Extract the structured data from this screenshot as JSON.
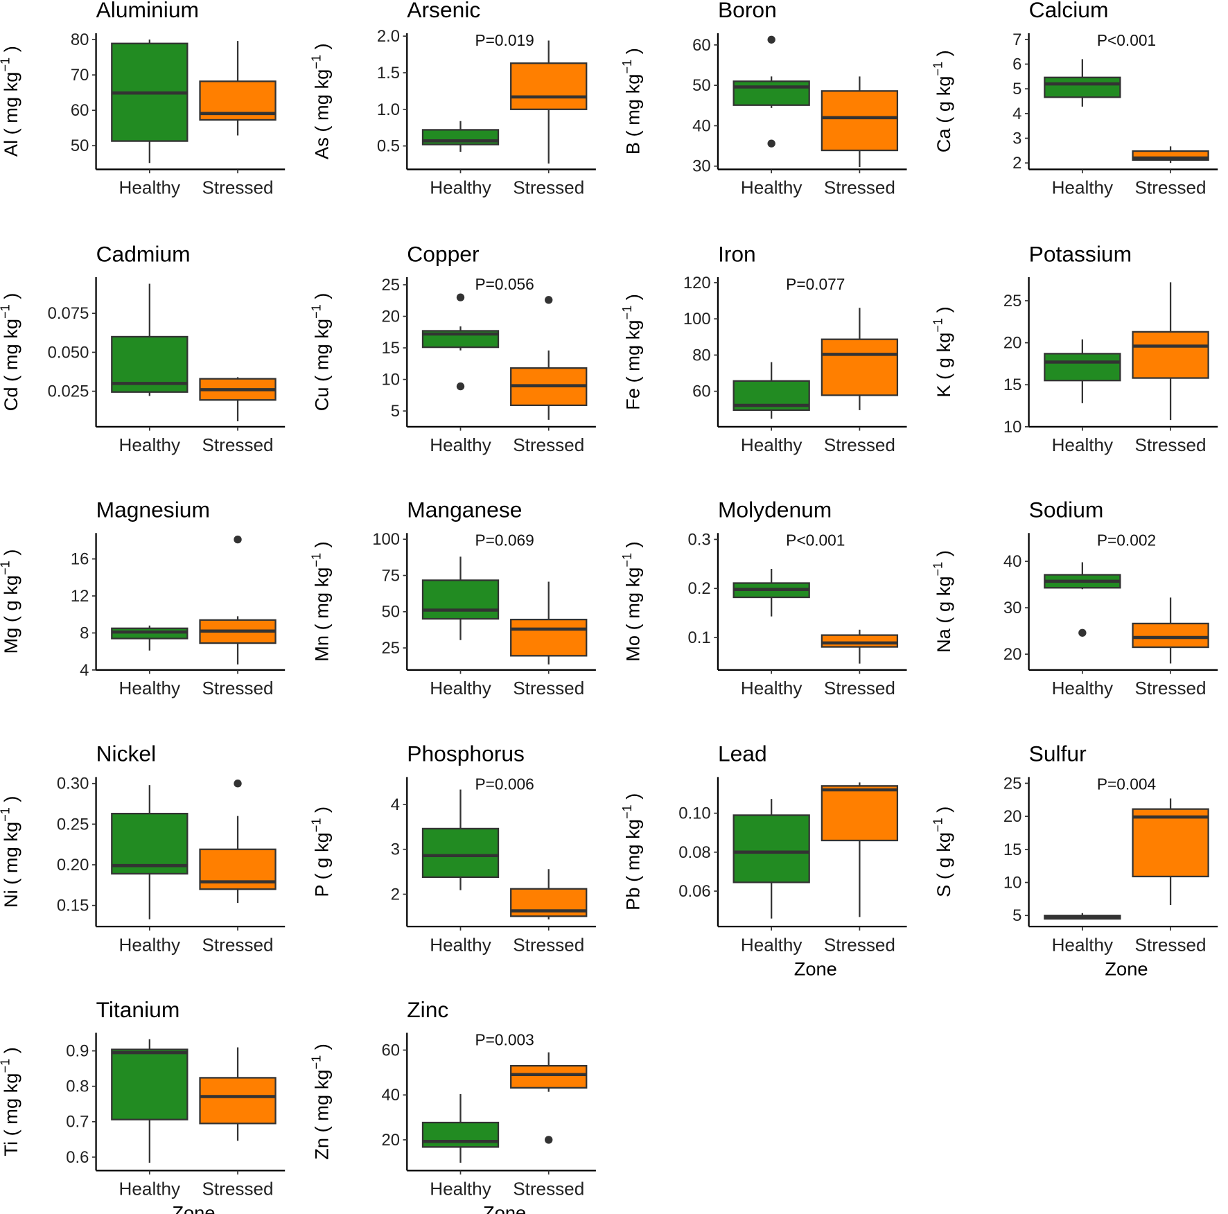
{
  "colors": {
    "Healthy": "#228B22",
    "Stressed": "#FF7F00",
    "median": "#333333",
    "axis": "#000000"
  },
  "chart_data": [
    {
      "type": "box",
      "title": "Aluminium",
      "ylabel": {
        "text": "Al ( mg kg",
        "exp": "−1",
        "end": " )"
      },
      "ylim": [
        43.3,
        81.8
      ],
      "yticks": [
        50,
        60,
        70,
        80
      ],
      "tick_labels": [
        "50",
        "60",
        "70",
        "80"
      ],
      "categories": [
        "Healthy",
        "Stressed"
      ],
      "pvalue": null,
      "xlabel": null,
      "boxes": [
        {
          "min": 45.1,
          "q1": 51.3,
          "median": 64.9,
          "q3": 78.9,
          "max": 80,
          "outliers": []
        },
        {
          "min": 52.9,
          "q1": 57.3,
          "median": 59.1,
          "q3": 68.2,
          "max": 79.6,
          "outliers": []
        }
      ]
    },
    {
      "type": "box",
      "title": "Arsenic",
      "ylabel": {
        "text": "As ( mg kg",
        "exp": "−1",
        "end": " )"
      },
      "ylim": [
        0.18,
        2.04
      ],
      "yticks": [
        0.5,
        1.0,
        1.5,
        2.0
      ],
      "tick_labels": [
        "0.5",
        "1.0",
        "1.5",
        "2.0"
      ],
      "categories": [
        "Healthy",
        "Stressed"
      ],
      "pvalue": "P=0.019",
      "xlabel": null,
      "boxes": [
        {
          "min": 0.42,
          "q1": 0.52,
          "median": 0.57,
          "q3": 0.72,
          "max": 0.84,
          "outliers": []
        },
        {
          "min": 0.26,
          "q1": 1.0,
          "median": 1.17,
          "q3": 1.63,
          "max": 1.94,
          "outliers": []
        }
      ]
    },
    {
      "type": "box",
      "title": "Boron",
      "ylabel": {
        "text": "B ( mg kg",
        "exp": "−1",
        "end": " )"
      },
      "ylim": [
        29.2,
        62.9
      ],
      "yticks": [
        30,
        40,
        50,
        60
      ],
      "tick_labels": [
        "30",
        "40",
        "50",
        "60"
      ],
      "categories": [
        "Healthy",
        "Stressed"
      ],
      "pvalue": null,
      "xlabel": null,
      "boxes": [
        {
          "min": 44.4,
          "q1": 45.1,
          "median": 49.6,
          "q3": 51.0,
          "max": 52.2,
          "outliers": [
            61.3,
            35.6
          ]
        },
        {
          "min": 29.8,
          "q1": 33.9,
          "median": 42.0,
          "q3": 48.6,
          "max": 52.2,
          "outliers": []
        }
      ]
    },
    {
      "type": "box",
      "title": "Calcium",
      "ylabel": {
        "text": "Ca ( g kg",
        "exp": "−1",
        "end": " )"
      },
      "ylim": [
        1.74,
        7.25
      ],
      "yticks": [
        2,
        3,
        4,
        5,
        6,
        7
      ],
      "tick_labels": [
        "2",
        "3",
        "4",
        "5",
        "6",
        "7"
      ],
      "categories": [
        "Healthy",
        "Stressed"
      ],
      "pvalue": "P<0.001",
      "xlabel": null,
      "boxes": [
        {
          "min": 4.28,
          "q1": 4.66,
          "median": 5.2,
          "q3": 5.46,
          "max": 6.2,
          "outliers": []
        },
        {
          "min": 2.0,
          "q1": 2.12,
          "median": 2.2,
          "q3": 2.48,
          "max": 2.67,
          "outliers": []
        }
      ]
    },
    {
      "type": "box",
      "title": "Cadmium",
      "ylabel": {
        "text": "Cd ( mg kg",
        "exp": "−1",
        "end": " )"
      },
      "ylim": [
        0.0022,
        0.0982
      ],
      "yticks": [
        0.025,
        0.05,
        0.075
      ],
      "tick_labels": [
        "0.025",
        "0.050",
        "0.075"
      ],
      "categories": [
        "Healthy",
        "Stressed"
      ],
      "pvalue": null,
      "xlabel": null,
      "boxes": [
        {
          "min": 0.022,
          "q1": 0.0245,
          "median": 0.03,
          "q3": 0.06,
          "max": 0.094,
          "outliers": []
        },
        {
          "min": 0.0057,
          "q1": 0.0194,
          "median": 0.026,
          "q3": 0.033,
          "max": 0.034,
          "outliers": []
        }
      ]
    },
    {
      "type": "box",
      "title": "Copper",
      "ylabel": {
        "text": "Cu ( mg kg",
        "exp": "−1",
        "end": " )"
      },
      "ylim": [
        2.5,
        26.2
      ],
      "yticks": [
        5,
        10,
        15,
        20,
        25
      ],
      "tick_labels": [
        "5",
        "10",
        "15",
        "20",
        "25"
      ],
      "categories": [
        "Healthy",
        "Stressed"
      ],
      "pvalue": "P=0.056",
      "xlabel": null,
      "boxes": [
        {
          "min": 14.6,
          "q1": 15.1,
          "median": 17.2,
          "q3": 17.7,
          "max": 18.4,
          "outliers": [
            23.0,
            8.9
          ]
        },
        {
          "min": 3.6,
          "q1": 5.9,
          "median": 9.0,
          "q3": 11.8,
          "max": 14.6,
          "outliers": [
            22.6
          ]
        }
      ]
    },
    {
      "type": "box",
      "title": "Iron",
      "ylabel": {
        "text": "Fe ( mg kg",
        "exp": "−1",
        "end": " )"
      },
      "ylim": [
        40.4,
        123
      ],
      "yticks": [
        60,
        80,
        100,
        120
      ],
      "tick_labels": [
        "60",
        "80",
        "100",
        "120"
      ],
      "categories": [
        "Healthy",
        "Stressed"
      ],
      "pvalue": "P=0.077",
      "xlabel": null,
      "boxes": [
        {
          "min": 44.8,
          "q1": 49.6,
          "median": 52.2,
          "q3": 65.7,
          "max": 76.1,
          "outliers": []
        },
        {
          "min": 49.6,
          "q1": 57.8,
          "median": 80.4,
          "q3": 88.7,
          "max": 106.1,
          "outliers": []
        }
      ]
    },
    {
      "type": "box",
      "title": "Potassium",
      "ylabel": {
        "text": "K ( g kg",
        "exp": "−1",
        "end": " )"
      },
      "ylim": [
        10.0,
        27.8
      ],
      "yticks": [
        10,
        15,
        20,
        25
      ],
      "tick_labels": [
        "10",
        "15",
        "20",
        "25"
      ],
      "categories": [
        "Healthy",
        "Stressed"
      ],
      "pvalue": null,
      "xlabel": null,
      "boxes": [
        {
          "min": 12.8,
          "q1": 15.5,
          "median": 17.7,
          "q3": 18.7,
          "max": 20.4,
          "outliers": []
        },
        {
          "min": 10.8,
          "q1": 15.8,
          "median": 19.6,
          "q3": 21.3,
          "max": 27.2,
          "outliers": []
        }
      ]
    },
    {
      "type": "box",
      "title": "Magnesium",
      "ylabel": {
        "text": "Mg ( g kg",
        "exp": "−1",
        "end": " )"
      },
      "ylim": [
        4,
        18.8
      ],
      "yticks": [
        4,
        8,
        12,
        16
      ],
      "tick_labels": [
        "4",
        "8",
        "12",
        "16"
      ],
      "categories": [
        "Healthy",
        "Stressed"
      ],
      "pvalue": null,
      "xlabel": null,
      "boxes": [
        {
          "min": 6.1,
          "q1": 7.4,
          "median": 8.1,
          "q3": 8.5,
          "max": 8.8,
          "outliers": []
        },
        {
          "min": 4.6,
          "q1": 6.9,
          "median": 8.2,
          "q3": 9.4,
          "max": 9.8,
          "outliers": [
            18.1
          ]
        }
      ]
    },
    {
      "type": "box",
      "title": "Manganese",
      "ylabel": {
        "text": "Mn ( mg kg",
        "exp": "−1",
        "end": " )"
      },
      "ylim": [
        9.8,
        104.3
      ],
      "yticks": [
        25,
        50,
        75,
        100
      ],
      "tick_labels": [
        "25",
        "50",
        "75",
        "100"
      ],
      "categories": [
        "Healthy",
        "Stressed"
      ],
      "pvalue": "P=0.069",
      "xlabel": null,
      "boxes": [
        {
          "min": 30.4,
          "q1": 45.1,
          "median": 51.1,
          "q3": 71.7,
          "max": 88.0,
          "outliers": []
        },
        {
          "min": 13.6,
          "q1": 19.6,
          "median": 38.0,
          "q3": 44.6,
          "max": 70.7,
          "outliers": []
        }
      ]
    },
    {
      "type": "box",
      "title": "Molydenum",
      "ylabel": {
        "text": "Mo ( mg kg",
        "exp": "−1",
        "end": " )"
      },
      "ylim": [
        0.034,
        0.313
      ],
      "yticks": [
        0.1,
        0.2,
        0.3
      ],
      "tick_labels": [
        "0.1",
        "0.2",
        "0.3"
      ],
      "categories": [
        "Healthy",
        "Stressed"
      ],
      "pvalue": "P<0.001",
      "xlabel": null,
      "boxes": [
        {
          "min": 0.143,
          "q1": 0.182,
          "median": 0.198,
          "q3": 0.211,
          "max": 0.24,
          "outliers": []
        },
        {
          "min": 0.047,
          "q1": 0.081,
          "median": 0.089,
          "q3": 0.105,
          "max": 0.116,
          "outliers": []
        }
      ]
    },
    {
      "type": "box",
      "title": "Sodium",
      "ylabel": {
        "text": "Na ( g kg",
        "exp": "−1",
        "end": " )"
      },
      "ylim": [
        16.6,
        46.1
      ],
      "yticks": [
        20,
        30,
        40
      ],
      "tick_labels": [
        "20",
        "30",
        "40"
      ],
      "categories": [
        "Healthy",
        "Stressed"
      ],
      "pvalue": "P=0.002",
      "xlabel": null,
      "boxes": [
        {
          "min": 34.0,
          "q1": 34.3,
          "median": 35.7,
          "q3": 37.1,
          "max": 39.8,
          "outliers": [
            24.6
          ]
        },
        {
          "min": 18.0,
          "q1": 21.5,
          "median": 23.6,
          "q3": 26.6,
          "max": 32.2,
          "outliers": []
        }
      ]
    },
    {
      "type": "box",
      "title": "Nickel",
      "ylabel": {
        "text": "Ni ( mg kg",
        "exp": "−1",
        "end": " )"
      },
      "ylim": [
        0.124,
        0.308
      ],
      "yticks": [
        0.15,
        0.2,
        0.25,
        0.3
      ],
      "tick_labels": [
        "0.15",
        "0.20",
        "0.25",
        "0.30"
      ],
      "categories": [
        "Healthy",
        "Stressed"
      ],
      "pvalue": null,
      "xlabel": null,
      "boxes": [
        {
          "min": 0.133,
          "q1": 0.189,
          "median": 0.199,
          "q3": 0.263,
          "max": 0.298,
          "outliers": []
        },
        {
          "min": 0.153,
          "q1": 0.17,
          "median": 0.179,
          "q3": 0.219,
          "max": 0.26,
          "outliers": [
            0.3
          ]
        }
      ]
    },
    {
      "type": "box",
      "title": "Phosphorus",
      "ylabel": {
        "text": "P ( g kg",
        "exp": "−1",
        "end": " )"
      },
      "ylim": [
        1.28,
        4.61
      ],
      "yticks": [
        2,
        3,
        4
      ],
      "tick_labels": [
        "2",
        "3",
        "4"
      ],
      "categories": [
        "Healthy",
        "Stressed"
      ],
      "pvalue": "P=0.006",
      "xlabel": null,
      "boxes": [
        {
          "min": 2.09,
          "q1": 2.38,
          "median": 2.86,
          "q3": 3.46,
          "max": 4.33,
          "outliers": []
        },
        {
          "min": 1.44,
          "q1": 1.51,
          "median": 1.63,
          "q3": 2.12,
          "max": 2.56,
          "outliers": []
        }
      ]
    },
    {
      "type": "box",
      "title": "Lead",
      "ylabel": {
        "text": "Pb ( mg kg",
        "exp": "−1",
        "end": " )"
      },
      "ylim": [
        0.0418,
        0.1186
      ],
      "yticks": [
        0.06,
        0.08,
        0.1
      ],
      "tick_labels": [
        "0.06",
        "0.08",
        "0.10"
      ],
      "categories": [
        "Healthy",
        "Stressed"
      ],
      "pvalue": null,
      "xlabel": "Zone",
      "boxes": [
        {
          "min": 0.0459,
          "q1": 0.0645,
          "median": 0.08,
          "q3": 0.099,
          "max": 0.1073,
          "outliers": []
        },
        {
          "min": 0.0467,
          "q1": 0.086,
          "median": 0.112,
          "q3": 0.114,
          "max": 0.1158,
          "outliers": []
        }
      ]
    },
    {
      "type": "box",
      "title": "Sulfur",
      "ylabel": {
        "text": "S ( g kg",
        "exp": "−1",
        "end": " )"
      },
      "ylim": [
        3.33,
        25.95
      ],
      "yticks": [
        5,
        10,
        15,
        20,
        25
      ],
      "tick_labels": [
        "5",
        "10",
        "15",
        "20",
        "25"
      ],
      "categories": [
        "Healthy",
        "Stressed"
      ],
      "pvalue": "P=0.004",
      "xlabel": "Zone",
      "boxes": [
        {
          "min": 4.4,
          "q1": 4.5,
          "median": 4.76,
          "q3": 5.0,
          "max": 5.36,
          "outliers": []
        },
        {
          "min": 6.6,
          "q1": 10.9,
          "median": 19.9,
          "q3": 21.1,
          "max": 22.7,
          "outliers": []
        }
      ]
    },
    {
      "type": "box",
      "title": "Titanium",
      "ylabel": {
        "text": "Ti ( mg kg",
        "exp": "−1",
        "end": " )"
      },
      "ylim": [
        0.562,
        0.951
      ],
      "yticks": [
        0.6,
        0.7,
        0.8,
        0.9
      ],
      "tick_labels": [
        "0.6",
        "0.7",
        "0.8",
        "0.9"
      ],
      "categories": [
        "Healthy",
        "Stressed"
      ],
      "pvalue": null,
      "xlabel": "Zone",
      "boxes": [
        {
          "min": 0.584,
          "q1": 0.706,
          "median": 0.895,
          "q3": 0.904,
          "max": 0.933,
          "outliers": []
        },
        {
          "min": 0.646,
          "q1": 0.695,
          "median": 0.771,
          "q3": 0.824,
          "max": 0.91,
          "outliers": []
        }
      ]
    },
    {
      "type": "box",
      "title": "Zinc",
      "ylabel": {
        "text": "Zn ( mg kg",
        "exp": "−1",
        "end": " )"
      },
      "ylim": [
        6.3,
        67.7
      ],
      "yticks": [
        20,
        40,
        60
      ],
      "tick_labels": [
        "20",
        "40",
        "60"
      ],
      "categories": [
        "Healthy",
        "Stressed"
      ],
      "pvalue": "P=0.003",
      "xlabel": "Zone",
      "boxes": [
        {
          "min": 9.8,
          "q1": 16.8,
          "median": 19.3,
          "q3": 27.7,
          "max": 40.4,
          "outliers": []
        },
        {
          "min": 41.4,
          "q1": 43.2,
          "median": 49.1,
          "q3": 53.0,
          "max": 59.0,
          "outliers": [
            20.0
          ]
        }
      ]
    }
  ]
}
